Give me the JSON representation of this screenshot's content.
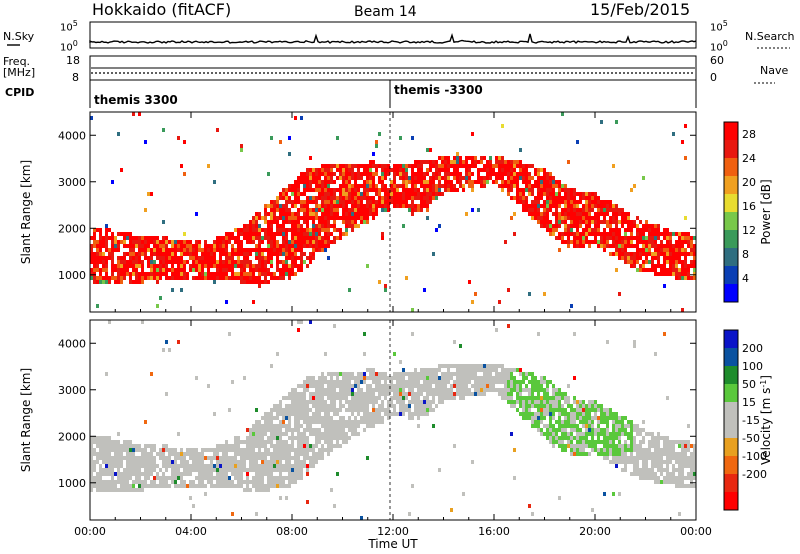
{
  "header": {
    "title": "Hokkaido (fitACF)",
    "beam": "Beam 14",
    "date": "15/Feb/2015"
  },
  "nsky": {
    "label": "N.Sky",
    "ytop": "10^5",
    "ybot": "10^0",
    "right_label": "N.Search",
    "right_top": "10^5",
    "right_bot": "10^0"
  },
  "freq": {
    "label_line1": "Freq.",
    "label_line2": "[MHz]",
    "ytop": "18",
    "ybot": "8",
    "right_label": "Nave",
    "right_top": "60",
    "right_bot": "0"
  },
  "cpid": {
    "label": "CPID",
    "segments": [
      {
        "start_hour": 0,
        "text": "themis 3300"
      },
      {
        "start_hour": 12,
        "text": "themis -3300"
      }
    ]
  },
  "colors": {
    "power_scale": [
      "#0000ff",
      "#0a3fb4",
      "#2f6e80",
      "#3a9a5a",
      "#78c84a",
      "#e8dc30",
      "#f0a020",
      "#f06010",
      "#e81810",
      "#ff0000"
    ],
    "velocity_scale": [
      "#0a14c8",
      "#0a52a0",
      "#1e8c2c",
      "#5ac83c",
      "#c0c0bc",
      "#c0c0bc",
      "#e8a020",
      "#f06810",
      "#e82810",
      "#ff0000"
    ],
    "ground_scatter": "#c0c0bc"
  },
  "chart_data": [
    {
      "type": "heatmap",
      "title": "Power",
      "ylabel": "Slant Range [km]",
      "xlabel": "Time UT",
      "xlim_hours": [
        0,
        24
      ],
      "ylim": [
        200,
        4500
      ],
      "x_ticks": [
        "00:00",
        "04:00",
        "08:00",
        "12:00",
        "16:00",
        "20:00",
        "00:00"
      ],
      "y_ticks": [
        1000,
        2000,
        3000,
        4000
      ],
      "colorbar": {
        "label": "Power [dB]",
        "ticks": [
          4,
          8,
          12,
          16,
          20,
          24,
          28
        ],
        "range": [
          0,
          30
        ]
      },
      "scatter_regions": [
        {
          "name": "main_band",
          "hours": [
            0,
            1,
            2,
            3,
            4,
            5,
            6,
            7,
            8,
            8.5,
            9,
            10,
            11,
            12,
            13,
            14,
            15,
            16,
            17,
            18,
            19,
            20,
            21,
            22,
            23,
            24
          ],
          "lower_km": [
            800,
            800,
            800,
            820,
            850,
            820,
            800,
            800,
            900,
            1100,
            1400,
            1800,
            2100,
            2400,
            2300,
            2700,
            2800,
            2900,
            2400,
            1900,
            1500,
            1600,
            1200,
            1000,
            900,
            800
          ],
          "upper_km": [
            2000,
            1900,
            1800,
            1750,
            1700,
            1750,
            2000,
            2500,
            3000,
            3200,
            3300,
            3300,
            3400,
            3300,
            3400,
            3500,
            3500,
            3500,
            3400,
            3200,
            2800,
            2700,
            2400,
            2100,
            1900,
            1800
          ]
        }
      ]
    },
    {
      "type": "heatmap",
      "title": "Velocity",
      "ylabel": "Slant Range [km]",
      "xlabel": "Time UT",
      "xlim_hours": [
        0,
        24
      ],
      "ylim": [
        200,
        4500
      ],
      "x_ticks": [
        "00:00",
        "04:00",
        "08:00",
        "12:00",
        "16:00",
        "20:00",
        "00:00"
      ],
      "y_ticks": [
        1000,
        2000,
        3000,
        4000
      ],
      "colorbar": {
        "label": "Velocity [m s^-1]",
        "ticks": [
          200,
          100,
          50,
          15,
          -15,
          -50,
          -100,
          -200
        ],
        "range": [
          -250,
          250
        ]
      },
      "scatter_regions": [
        {
          "name": "ground_scatter",
          "hours": [
            0,
            1,
            2,
            3,
            4,
            5,
            6,
            7,
            8,
            8.5,
            9,
            10,
            11,
            12,
            13,
            14,
            15,
            16,
            17,
            18,
            19,
            20,
            21,
            22,
            23,
            24
          ],
          "lower_km": [
            800,
            800,
            800,
            820,
            850,
            820,
            800,
            800,
            900,
            1100,
            1400,
            1800,
            2100,
            2400,
            2300,
            2700,
            2800,
            2900,
            2400,
            1900,
            1500,
            1600,
            1200,
            1000,
            900,
            800
          ],
          "upper_km": [
            2000,
            1900,
            1800,
            1750,
            1700,
            1750,
            2000,
            2500,
            3000,
            3200,
            3300,
            3300,
            3400,
            3300,
            3400,
            3500,
            3500,
            3500,
            3400,
            3200,
            2800,
            2700,
            2400,
            2100,
            1900,
            1800
          ]
        }
      ]
    }
  ]
}
